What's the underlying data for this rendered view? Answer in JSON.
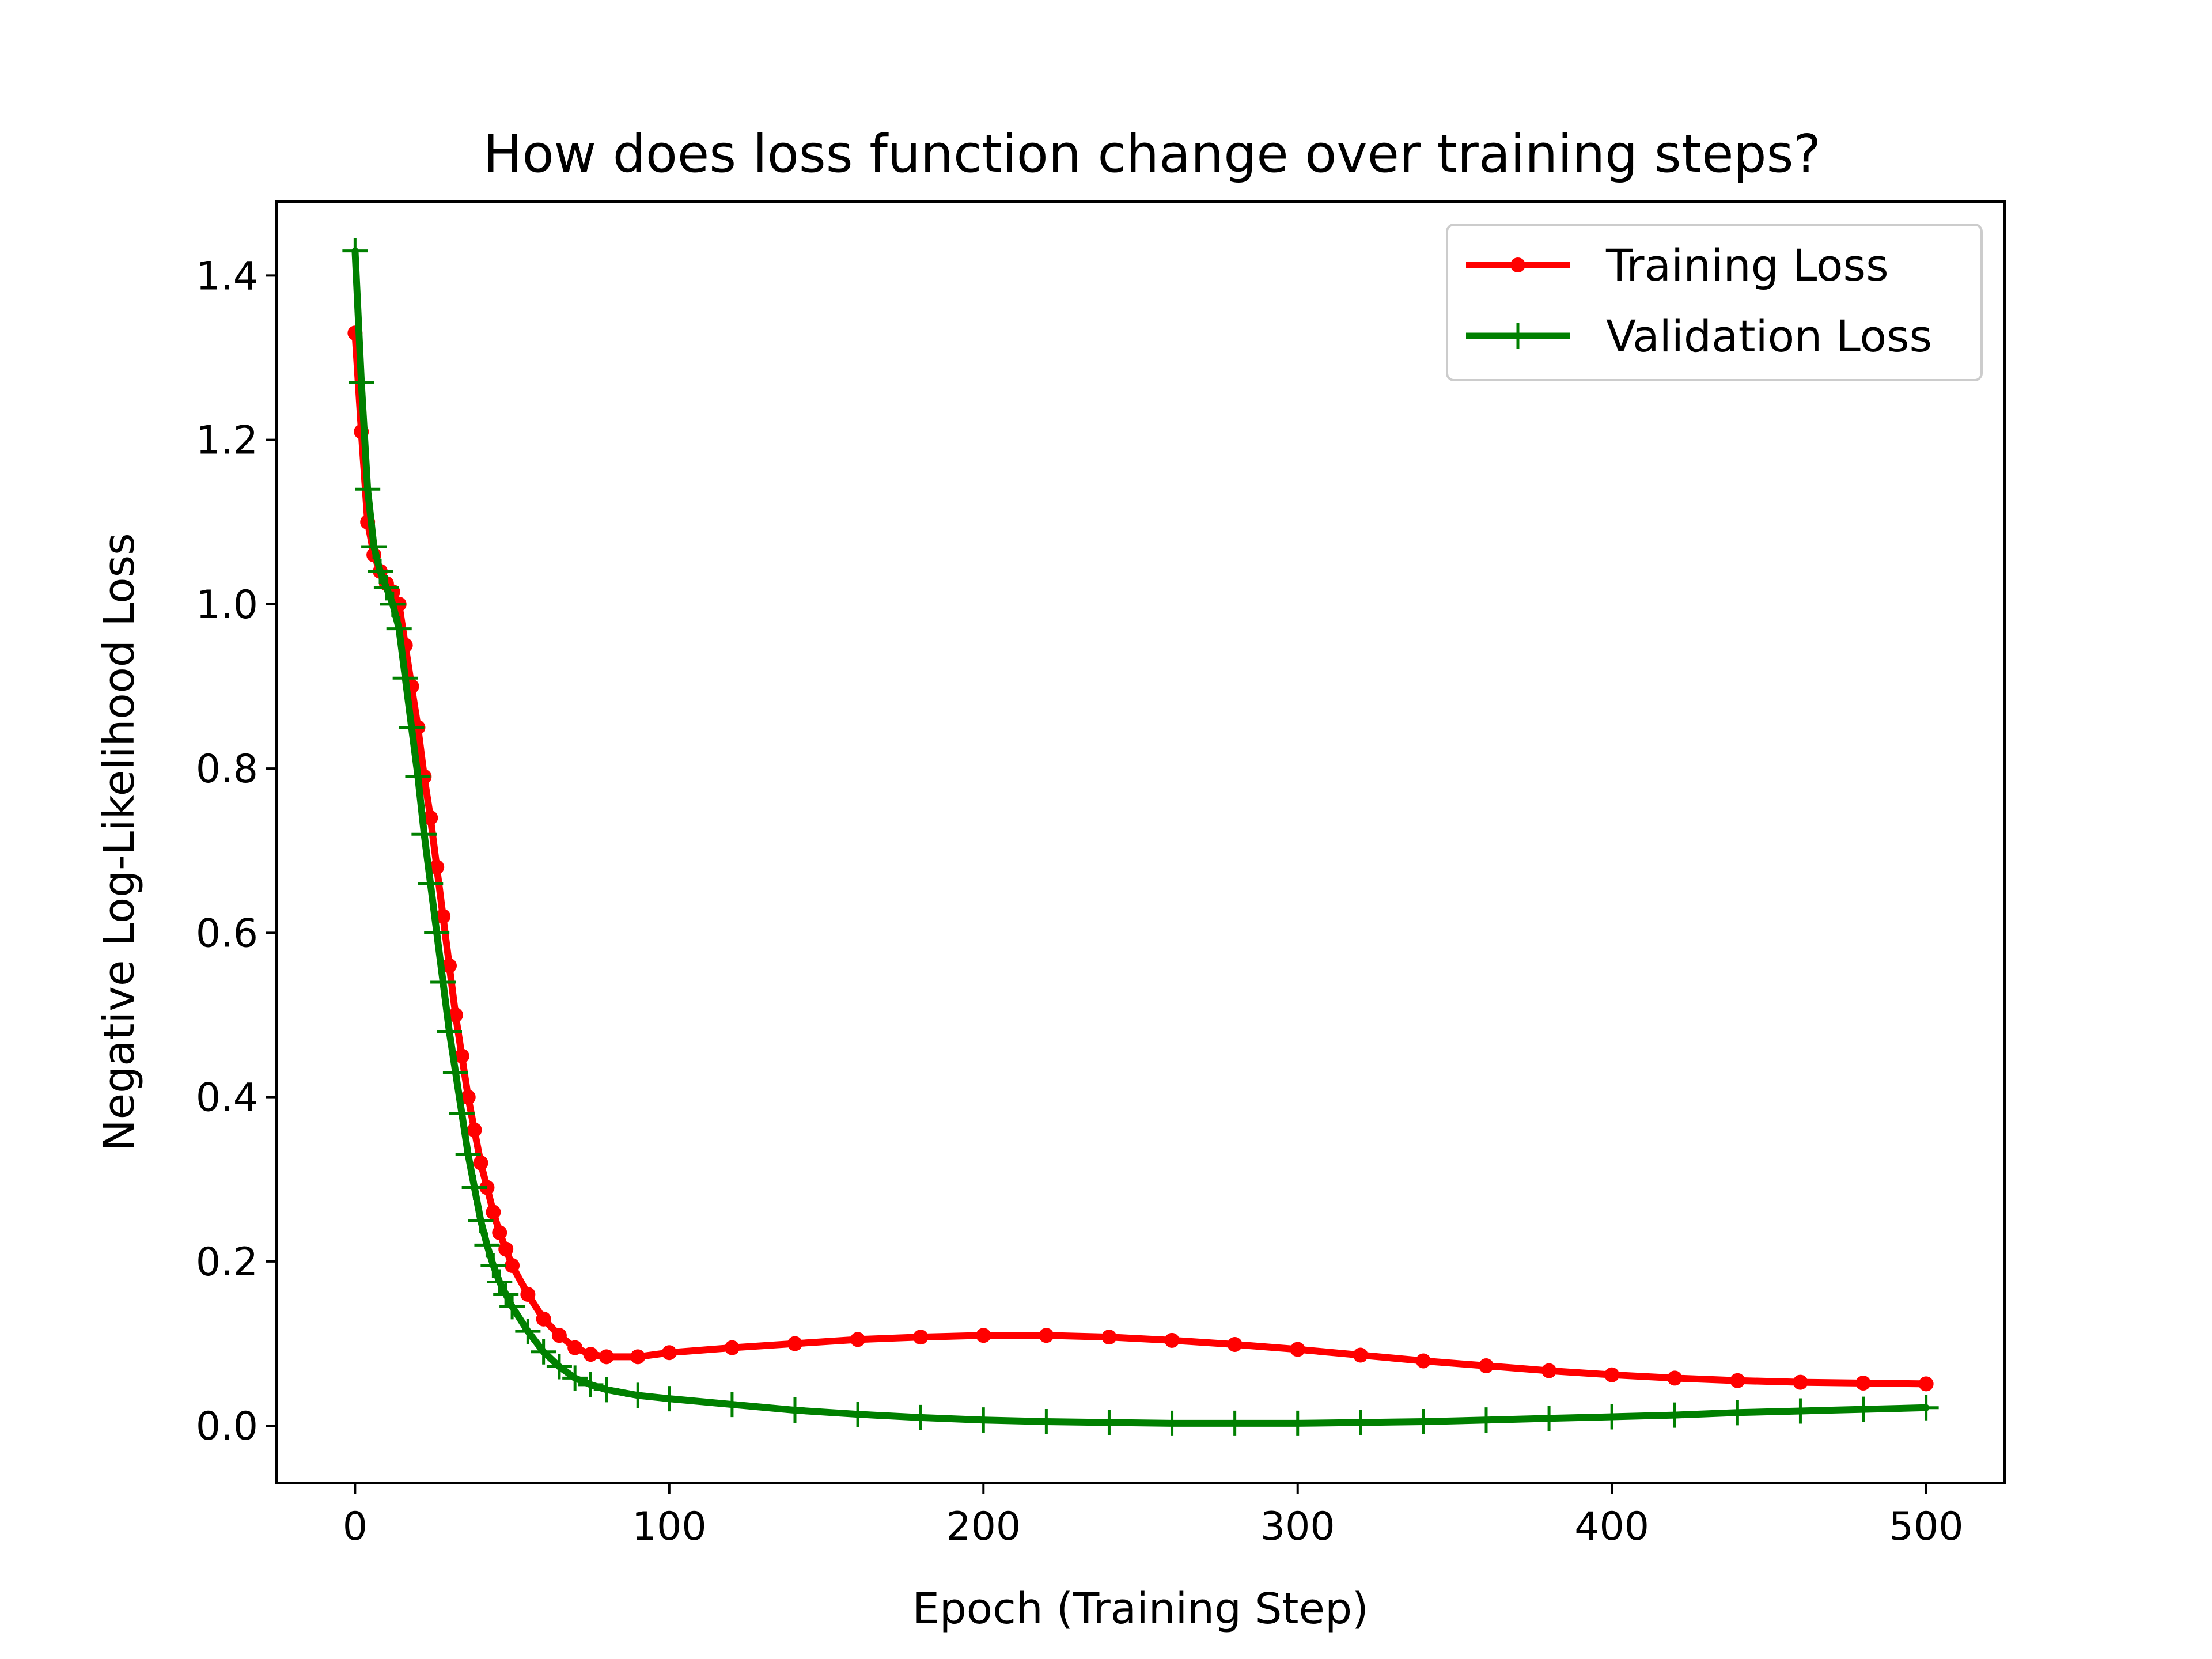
{
  "chart_data": {
    "type": "line",
    "title": "How does loss function change over training steps?",
    "xlabel": "Epoch (Training Step)",
    "ylabel": "Negative Log-Likelihood Loss",
    "xlim": [
      -25,
      525
    ],
    "ylim": [
      -0.07,
      1.49
    ],
    "xticks": [
      0,
      100,
      200,
      300,
      400,
      500
    ],
    "xtick_labels": [
      "0",
      "100",
      "200",
      "300",
      "400",
      "500"
    ],
    "yticks": [
      0.0,
      0.2,
      0.4,
      0.6,
      0.8,
      1.0,
      1.2,
      1.4
    ],
    "ytick_labels": [
      "0.0",
      "0.2",
      "0.4",
      "0.6",
      "0.8",
      "1.0",
      "1.2",
      "1.4"
    ],
    "grid": false,
    "legend_position": "top-right",
    "series": [
      {
        "name": "Training Loss",
        "color": "#ff0000",
        "marker": "circle",
        "x": [
          0,
          2,
          4,
          6,
          8,
          10,
          12,
          14,
          16,
          18,
          20,
          22,
          24,
          26,
          28,
          30,
          32,
          34,
          36,
          38,
          40,
          42,
          44,
          46,
          48,
          50,
          55,
          60,
          65,
          70,
          75,
          80,
          90,
          100,
          120,
          140,
          160,
          180,
          200,
          220,
          240,
          260,
          280,
          300,
          320,
          340,
          360,
          380,
          400,
          420,
          440,
          460,
          480,
          500
        ],
        "y": [
          1.33,
          1.21,
          1.1,
          1.06,
          1.04,
          1.025,
          1.015,
          1.0,
          0.95,
          0.9,
          0.85,
          0.79,
          0.74,
          0.68,
          0.62,
          0.56,
          0.5,
          0.45,
          0.4,
          0.36,
          0.32,
          0.29,
          0.26,
          0.235,
          0.215,
          0.195,
          0.16,
          0.13,
          0.11,
          0.095,
          0.087,
          0.084,
          0.084,
          0.089,
          0.095,
          0.1,
          0.105,
          0.108,
          0.11,
          0.11,
          0.108,
          0.104,
          0.099,
          0.093,
          0.086,
          0.079,
          0.073,
          0.067,
          0.062,
          0.058,
          0.055,
          0.053,
          0.052,
          0.051
        ]
      },
      {
        "name": "Validation Loss",
        "color": "#008000",
        "marker": "plus",
        "x": [
          0,
          2,
          4,
          6,
          8,
          10,
          12,
          14,
          16,
          18,
          20,
          22,
          24,
          26,
          28,
          30,
          32,
          34,
          36,
          38,
          40,
          42,
          44,
          46,
          48,
          50,
          55,
          60,
          65,
          70,
          75,
          80,
          90,
          100,
          120,
          140,
          160,
          180,
          200,
          220,
          240,
          260,
          280,
          300,
          320,
          340,
          360,
          380,
          400,
          420,
          440,
          460,
          480,
          500
        ],
        "y": [
          1.43,
          1.27,
          1.14,
          1.07,
          1.04,
          1.02,
          1.0,
          0.97,
          0.91,
          0.85,
          0.79,
          0.72,
          0.66,
          0.6,
          0.54,
          0.48,
          0.43,
          0.38,
          0.33,
          0.29,
          0.25,
          0.22,
          0.195,
          0.175,
          0.16,
          0.145,
          0.115,
          0.09,
          0.072,
          0.058,
          0.05,
          0.044,
          0.037,
          0.033,
          0.026,
          0.019,
          0.014,
          0.01,
          0.007,
          0.005,
          0.004,
          0.003,
          0.003,
          0.003,
          0.004,
          0.005,
          0.007,
          0.009,
          0.011,
          0.013,
          0.016,
          0.018,
          0.02,
          0.022
        ]
      }
    ]
  }
}
